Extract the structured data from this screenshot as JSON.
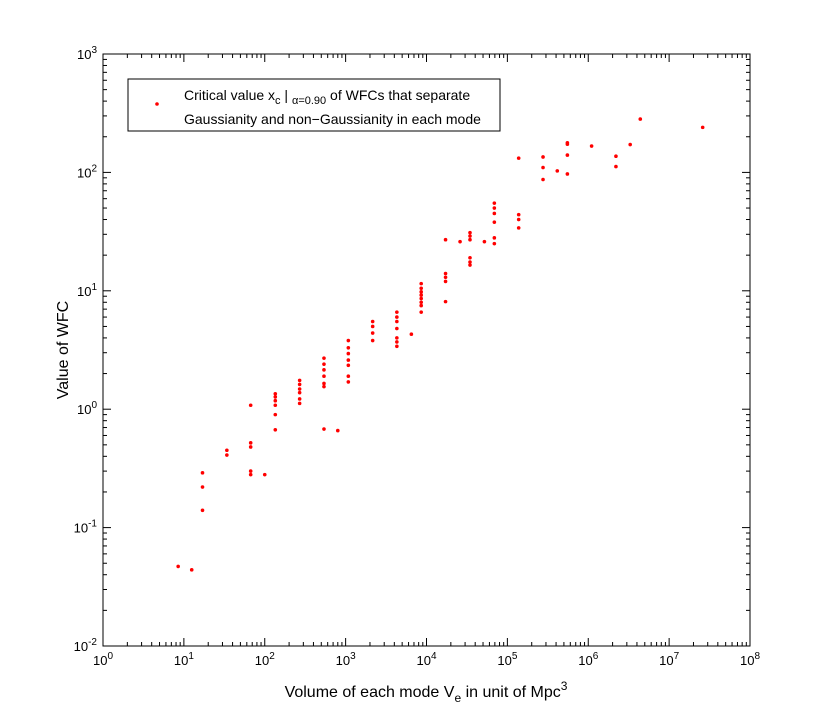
{
  "chart_data": {
    "type": "scatter",
    "title": "",
    "xlabel": "Volume of each mode V_e in unit of Mpc^3",
    "xlabel_parts": {
      "main": "Volume of each mode V",
      "sub": "e",
      "mid": " in unit of Mpc",
      "sup": "3"
    },
    "ylabel": "Value of WFC",
    "x_scale": "log",
    "y_scale": "log",
    "xlim": [
      1,
      100000000
    ],
    "ylim": [
      0.01,
      1000
    ],
    "grid": false,
    "legend_position": "top-left",
    "x_ticks": [
      {
        "base": "10",
        "exp": "0",
        "value": 1
      },
      {
        "base": "10",
        "exp": "1",
        "value": 10
      },
      {
        "base": "10",
        "exp": "2",
        "value": 100
      },
      {
        "base": "10",
        "exp": "3",
        "value": 1000
      },
      {
        "base": "10",
        "exp": "4",
        "value": 10000
      },
      {
        "base": "10",
        "exp": "5",
        "value": 100000
      },
      {
        "base": "10",
        "exp": "6",
        "value": 1000000
      },
      {
        "base": "10",
        "exp": "7",
        "value": 10000000
      },
      {
        "base": "10",
        "exp": "8",
        "value": 100000000
      }
    ],
    "y_ticks": [
      {
        "base": "10",
        "exp": "-2",
        "value": 0.01
      },
      {
        "base": "10",
        "exp": "-1",
        "value": 0.1
      },
      {
        "base": "10",
        "exp": "0",
        "value": 1
      },
      {
        "base": "10",
        "exp": "1",
        "value": 10
      },
      {
        "base": "10",
        "exp": "2",
        "value": 100
      },
      {
        "base": "10",
        "exp": "3",
        "value": 1000
      }
    ],
    "series": [
      {
        "name": "Critical value x_c | alpha=0.90 of WFCs that separate Gaussianity and non-Gaussianity in each mode",
        "legend_line1_parts": {
          "a": "Critical value x",
          "b": "c",
          "c": " | ",
          "d": "α=0.90",
          "e": " of WFCs that separate"
        },
        "legend_line2": "Gaussianity and non−Gaussianity in each mode",
        "color": "#ff0000",
        "points": [
          [
            8.5,
            0.047
          ],
          [
            12.5,
            0.044
          ],
          [
            17,
            0.29
          ],
          [
            17,
            0.22
          ],
          [
            17,
            0.14
          ],
          [
            34,
            0.45
          ],
          [
            34,
            0.41
          ],
          [
            67,
            1.08
          ],
          [
            67,
            0.52
          ],
          [
            67,
            0.48
          ],
          [
            67,
            0.3
          ],
          [
            67,
            0.28
          ],
          [
            100,
            0.28
          ],
          [
            135,
            1.35
          ],
          [
            135,
            1.27
          ],
          [
            135,
            1.18
          ],
          [
            135,
            1.08
          ],
          [
            135,
            0.9
          ],
          [
            135,
            0.67
          ],
          [
            270,
            1.75
          ],
          [
            270,
            1.62
          ],
          [
            270,
            1.48
          ],
          [
            270,
            1.38
          ],
          [
            270,
            1.22
          ],
          [
            270,
            1.12
          ],
          [
            540,
            2.7
          ],
          [
            540,
            2.4
          ],
          [
            540,
            2.15
          ],
          [
            540,
            1.9
          ],
          [
            540,
            1.65
          ],
          [
            540,
            1.55
          ],
          [
            540,
            0.68
          ],
          [
            800,
            0.66
          ],
          [
            1080,
            3.8
          ],
          [
            1080,
            3.3
          ],
          [
            1080,
            2.95
          ],
          [
            1080,
            2.6
          ],
          [
            1080,
            2.35
          ],
          [
            1080,
            1.9
          ],
          [
            1080,
            1.7
          ],
          [
            2160,
            5.5
          ],
          [
            2160,
            5.0
          ],
          [
            2160,
            4.4
          ],
          [
            2160,
            3.8
          ],
          [
            4300,
            6.6
          ],
          [
            4300,
            6.0
          ],
          [
            4300,
            5.5
          ],
          [
            4300,
            4.8
          ],
          [
            4300,
            4.0
          ],
          [
            4300,
            3.7
          ],
          [
            4300,
            3.4
          ],
          [
            6500,
            4.3
          ],
          [
            8600,
            11.5
          ],
          [
            8600,
            10.5
          ],
          [
            8600,
            9.8
          ],
          [
            8600,
            9.2
          ],
          [
            8600,
            8.6
          ],
          [
            8600,
            8.0
          ],
          [
            8600,
            7.5
          ],
          [
            8600,
            6.6
          ],
          [
            17200,
            27
          ],
          [
            17200,
            14
          ],
          [
            17200,
            13
          ],
          [
            17200,
            12
          ],
          [
            17200,
            8.1
          ],
          [
            26000,
            26
          ],
          [
            34500,
            31
          ],
          [
            34500,
            29
          ],
          [
            34500,
            27
          ],
          [
            34500,
            19
          ],
          [
            34500,
            17.5
          ],
          [
            34500,
            16.5
          ],
          [
            52000,
            26
          ],
          [
            69000,
            55
          ],
          [
            69000,
            50
          ],
          [
            69000,
            45
          ],
          [
            69000,
            38
          ],
          [
            69000,
            28
          ],
          [
            69000,
            25
          ],
          [
            138000,
            132
          ],
          [
            138000,
            44
          ],
          [
            138000,
            40
          ],
          [
            138000,
            34
          ],
          [
            276000,
            135
          ],
          [
            276000,
            110
          ],
          [
            276000,
            87
          ],
          [
            414000,
            103
          ],
          [
            552000,
            178
          ],
          [
            552000,
            173
          ],
          [
            552000,
            140
          ],
          [
            552000,
            97
          ],
          [
            1100000,
            167
          ],
          [
            2200000,
            137
          ],
          [
            2200000,
            112
          ],
          [
            3300000,
            172
          ],
          [
            4400000,
            282
          ],
          [
            26000000,
            240
          ]
        ]
      }
    ]
  }
}
